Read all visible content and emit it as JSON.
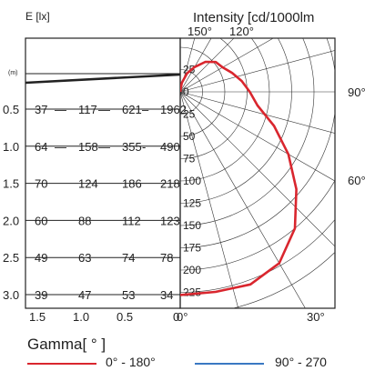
{
  "chart_data": {
    "type": "line",
    "illuminance_panel": {
      "axis_label": "E [lx]",
      "distance_label": "(m)",
      "distances": [
        "0.5",
        "1.0",
        "1.5",
        "2.0",
        "2.5",
        "3.0"
      ],
      "illuminance_values": [
        [
          "37",
          "117",
          "621",
          "1962"
        ],
        [
          "64",
          "158",
          "355",
          "490"
        ],
        [
          "70",
          "124",
          "186",
          "218"
        ],
        [
          "60",
          "88",
          "112",
          "123"
        ],
        [
          "49",
          "63",
          "74",
          "78"
        ],
        [
          "39",
          "47",
          "53",
          "34"
        ]
      ],
      "separators": [
        [
          "—",
          "—",
          "–",
          ""
        ],
        [
          "—",
          "—",
          "-",
          ""
        ],
        [
          "",
          "",
          "",
          ""
        ],
        [
          "",
          "",
          "",
          ""
        ],
        [
          "",
          "",
          "",
          ""
        ],
        [
          "",
          "",
          "",
          ""
        ]
      ],
      "x_ticks": [
        "1.5",
        "1.0",
        "0.5",
        "0"
      ]
    },
    "polar_panel": {
      "title": "Intensity [cd/1000lm",
      "radial_unit": "cd/1000lm",
      "radial_ticks": [
        "25",
        "0",
        "25",
        "50",
        "75",
        "100",
        "125",
        "150",
        "175",
        "200",
        "225"
      ],
      "radial_max": 250,
      "angle_labels_top": [
        "150°",
        "120°"
      ],
      "angle_labels_side": [
        "90°",
        "60°"
      ],
      "angle_labels_bottom": [
        "0°",
        "30°"
      ],
      "angle_label_values": [
        150,
        120,
        90,
        60,
        0,
        30
      ],
      "series": [
        {
          "name": "0° - 180°",
          "color": "#d9262e",
          "gamma_deg": [
            0,
            10,
            20,
            30,
            40,
            50,
            60,
            70,
            80,
            90,
            100,
            110,
            120,
            130,
            140,
            150,
            160,
            170,
            180
          ],
          "intensity": [
            228,
            228,
            230,
            222,
            200,
            170,
            140,
            112,
            88,
            78,
            70,
            62,
            55,
            52,
            44,
            32,
            22,
            10,
            0
          ]
        },
        {
          "name": "90° - 270",
          "color": "#3a78c3",
          "gamma_deg": [],
          "intensity": []
        }
      ]
    },
    "legend": {
      "title": "Gamma[ ° ]",
      "entries": [
        {
          "label": "0° - 180°",
          "color": "#d9262e"
        },
        {
          "label": "90° - 270",
          "color": "#3a78c3"
        }
      ]
    }
  }
}
